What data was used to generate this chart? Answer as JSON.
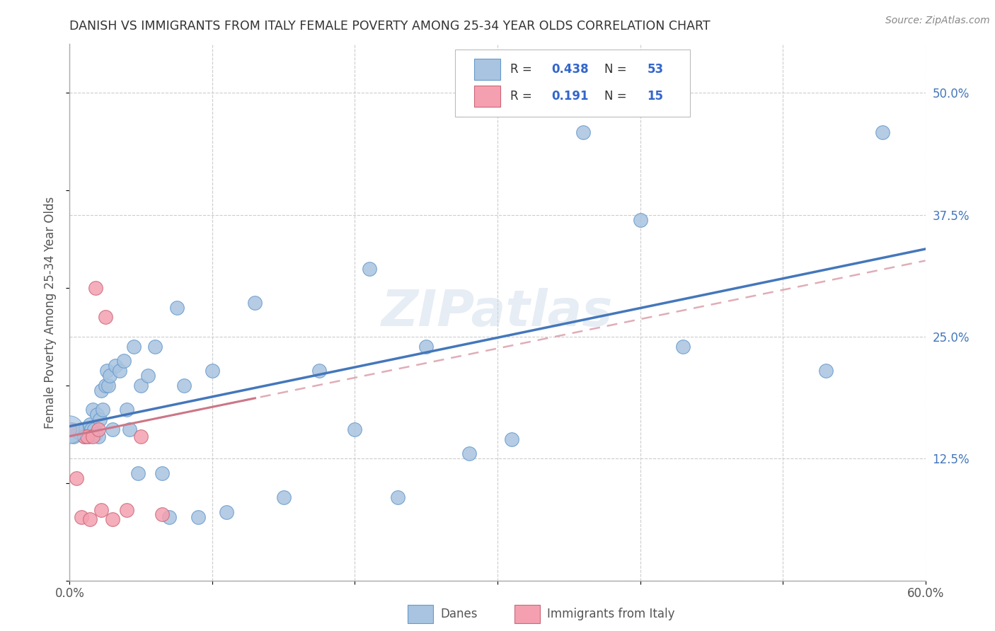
{
  "title": "DANISH VS IMMIGRANTS FROM ITALY FEMALE POVERTY AMONG 25-34 YEAR OLDS CORRELATION CHART",
  "source": "Source: ZipAtlas.com",
  "ylabel": "Female Poverty Among 25-34 Year Olds",
  "xlim": [
    0.0,
    0.6
  ],
  "ylim": [
    0.0,
    0.55
  ],
  "danes_color": "#a8c4e0",
  "danes_edge_color": "#6699cc",
  "italy_color": "#f4a0b0",
  "italy_edge_color": "#cc6677",
  "line_danes_color": "#4477bb",
  "line_italy_color": "#cc7788",
  "watermark": "ZIPatlas",
  "danes_x": [
    0.002,
    0.003,
    0.006,
    0.008,
    0.01,
    0.011,
    0.013,
    0.014,
    0.015,
    0.016,
    0.017,
    0.018,
    0.019,
    0.02,
    0.021,
    0.022,
    0.023,
    0.025,
    0.026,
    0.027,
    0.028,
    0.03,
    0.032,
    0.035,
    0.038,
    0.04,
    0.042,
    0.045,
    0.048,
    0.05,
    0.055,
    0.06,
    0.065,
    0.07,
    0.075,
    0.08,
    0.09,
    0.1,
    0.11,
    0.13,
    0.15,
    0.175,
    0.2,
    0.21,
    0.23,
    0.25,
    0.28,
    0.31,
    0.36,
    0.4,
    0.43,
    0.53,
    0.57
  ],
  "danes_y": [
    0.155,
    0.148,
    0.152,
    0.155,
    0.148,
    0.156,
    0.148,
    0.16,
    0.155,
    0.175,
    0.155,
    0.15,
    0.17,
    0.148,
    0.165,
    0.195,
    0.175,
    0.2,
    0.215,
    0.2,
    0.21,
    0.155,
    0.22,
    0.215,
    0.225,
    0.175,
    0.155,
    0.24,
    0.11,
    0.2,
    0.21,
    0.24,
    0.11,
    0.065,
    0.28,
    0.2,
    0.065,
    0.215,
    0.07,
    0.285,
    0.085,
    0.215,
    0.155,
    0.32,
    0.085,
    0.24,
    0.13,
    0.145,
    0.46,
    0.37,
    0.24,
    0.215,
    0.46
  ],
  "italy_x": [
    0.0,
    0.005,
    0.008,
    0.01,
    0.012,
    0.014,
    0.016,
    0.018,
    0.02,
    0.022,
    0.025,
    0.03,
    0.04,
    0.05,
    0.065
  ],
  "italy_y": [
    0.155,
    0.105,
    0.065,
    0.148,
    0.148,
    0.063,
    0.148,
    0.3,
    0.155,
    0.072,
    0.27,
    0.063,
    0.072,
    0.148,
    0.068
  ],
  "italy_line_xmax": 0.13
}
